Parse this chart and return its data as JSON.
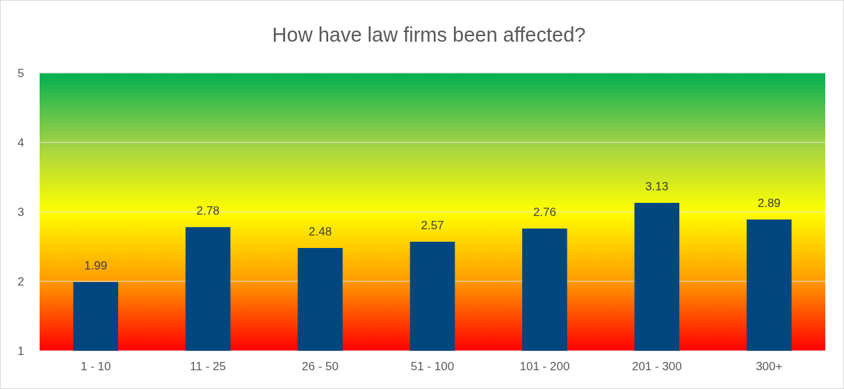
{
  "chart_data": {
    "type": "bar",
    "title": "How have law firms been affected?",
    "categories": [
      "1 - 10",
      "11 - 25",
      "26 - 50",
      "51 - 100",
      "101 - 200",
      "201 - 300",
      "300+"
    ],
    "values": [
      1.99,
      2.78,
      2.48,
      2.57,
      2.76,
      3.13,
      2.89
    ],
    "color": "#00467f",
    "ylim": [
      1,
      5
    ],
    "yticks": [
      1,
      2,
      3,
      4,
      5
    ],
    "grid": "y",
    "data_labels": true
  }
}
